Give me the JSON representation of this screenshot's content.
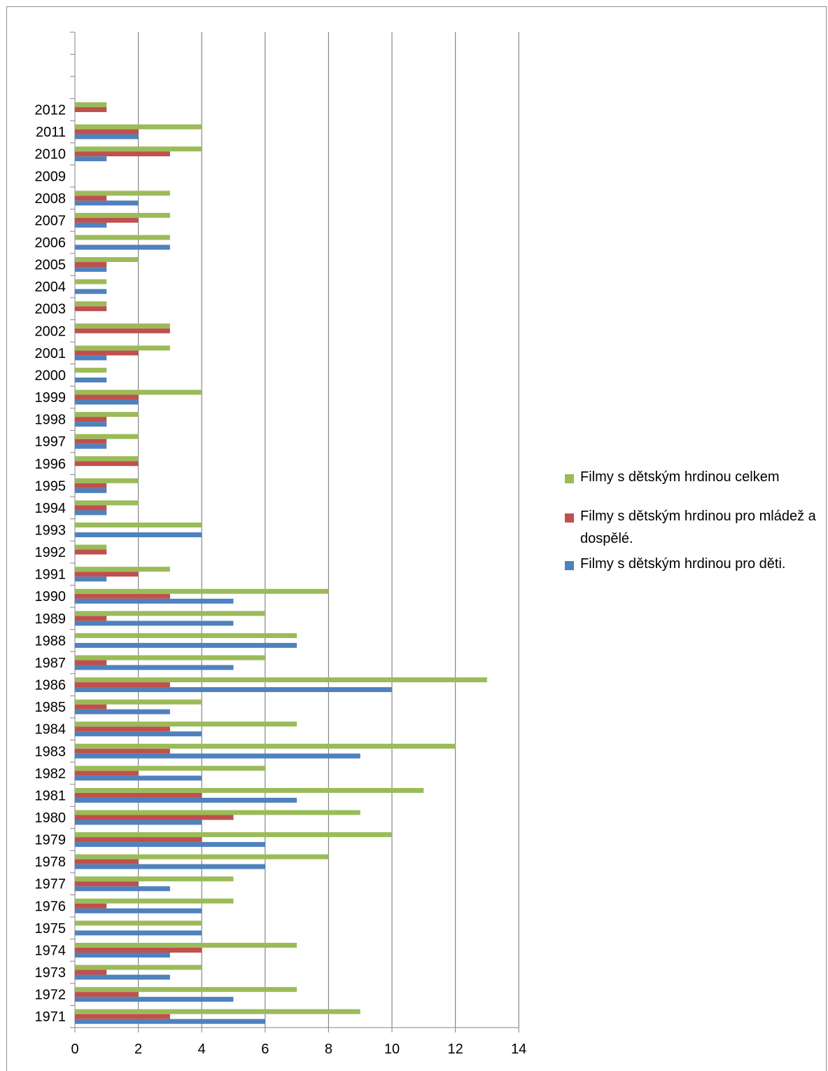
{
  "chart_data": {
    "type": "bar",
    "orientation": "horizontal",
    "categories": [
      "1971",
      "1972",
      "1973",
      "1974",
      "1975",
      "1976",
      "1977",
      "1978",
      "1979",
      "1980",
      "1981",
      "1982",
      "1983",
      "1984",
      "1985",
      "1986",
      "1987",
      "1988",
      "1989",
      "1990",
      "1991",
      "1992",
      "1993",
      "1994",
      "1995",
      "1996",
      "1997",
      "1998",
      "1999",
      "2000",
      "2001",
      "2002",
      "2003",
      "2004",
      "2005",
      "2006",
      "2007",
      "2008",
      "2009",
      "2010",
      "2011",
      "2012"
    ],
    "series": [
      {
        "name": "Filmy s dětským hrdinou pro děti.",
        "color": "#4f81bd",
        "values": [
          6,
          5,
          3,
          3,
          4,
          4,
          3,
          6,
          6,
          4,
          7,
          4,
          9,
          4,
          3,
          10,
          5,
          7,
          5,
          5,
          1,
          0,
          4,
          1,
          1,
          0,
          1,
          1,
          2,
          1,
          1,
          0,
          0,
          1,
          1,
          3,
          1,
          2,
          0,
          1,
          2,
          0
        ]
      },
      {
        "name": "Filmy s dětským hrdinou pro mládež a dospělé.",
        "color": "#c0504d",
        "values": [
          3,
          2,
          1,
          4,
          0,
          1,
          2,
          2,
          4,
          5,
          4,
          2,
          3,
          3,
          1,
          3,
          1,
          0,
          1,
          3,
          2,
          1,
          0,
          1,
          1,
          2,
          1,
          1,
          2,
          0,
          2,
          3,
          1,
          0,
          1,
          0,
          2,
          1,
          0,
          3,
          2,
          1
        ]
      },
      {
        "name": "Filmy s dětským hrdinou celkem",
        "color": "#9bbb59",
        "values": [
          9,
          7,
          4,
          7,
          4,
          5,
          5,
          8,
          10,
          9,
          11,
          6,
          12,
          7,
          4,
          13,
          6,
          7,
          6,
          8,
          3,
          1,
          4,
          2,
          2,
          2,
          2,
          2,
          4,
          1,
          3,
          3,
          1,
          1,
          2,
          3,
          3,
          3,
          0,
          4,
          4,
          1
        ]
      }
    ],
    "xlim": [
      0,
      14
    ],
    "x_ticks": [
      "0",
      "2",
      "4",
      "6",
      "8",
      "10",
      "12",
      "14"
    ],
    "grid": true,
    "legend_position": "right"
  },
  "legend": {
    "items": [
      {
        "label": "Filmy s dětským hrdinou celkem",
        "color": "#9bbb59"
      },
      {
        "label": "Filmy s dětským hrdinou pro mládež a dospělé.",
        "color": "#c0504d"
      },
      {
        "label": "Filmy s dětským hrdinou pro děti.",
        "color": "#4f81bd"
      }
    ]
  }
}
